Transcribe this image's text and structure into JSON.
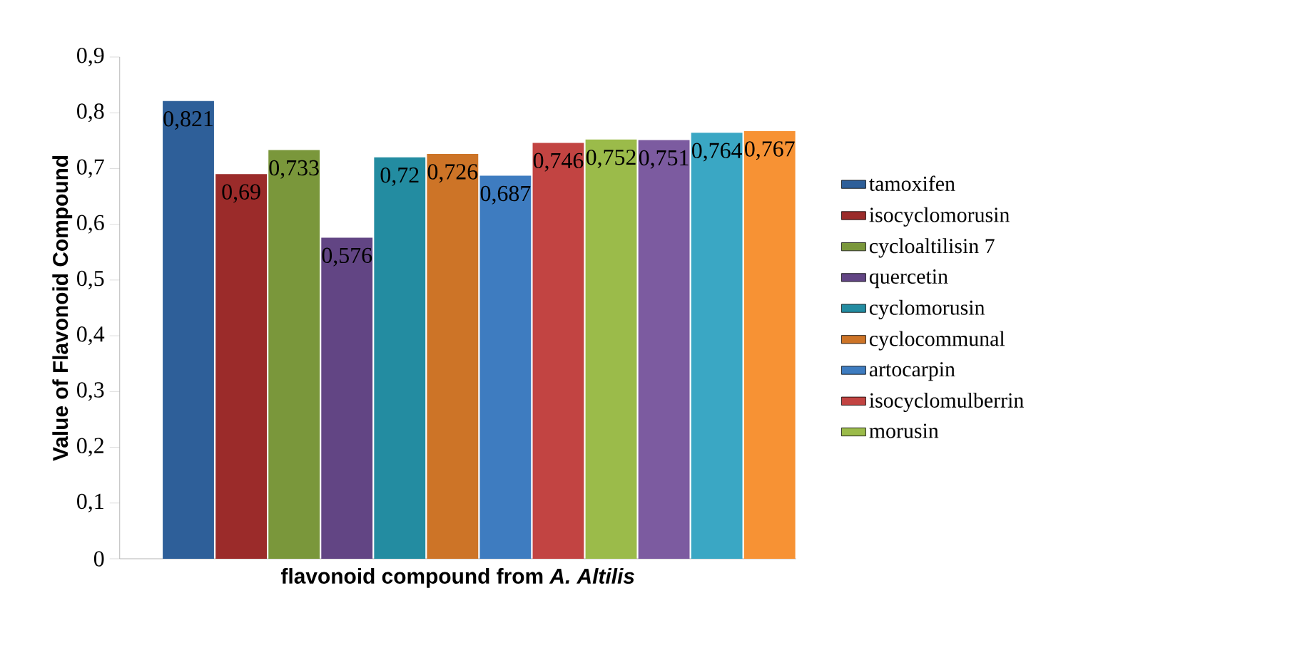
{
  "chart_data": {
    "type": "bar",
    "xlabel": "flavonoid compound from *A. Altilis*",
    "ylabel": "Value of Flavonoid Compound",
    "categories": [
      null
    ],
    "series": [
      {
        "name": "tamoxifen",
        "color": "#2e5f99",
        "values": [
          0.821
        ],
        "value_labels": [
          "0,821"
        ]
      },
      {
        "name": "isocyclomorusin",
        "color": "#9b2b2a",
        "values": [
          0.69
        ],
        "value_labels": [
          "0,69"
        ]
      },
      {
        "name": "cycloaltilisin 7",
        "color": "#7a973b",
        "values": [
          0.733
        ],
        "value_labels": [
          "0,733"
        ]
      },
      {
        "name": "quercetin",
        "color": "#624584",
        "values": [
          0.576
        ],
        "value_labels": [
          "0,576"
        ]
      },
      {
        "name": "cyclomorusin",
        "color": "#238ca1",
        "values": [
          0.72
        ],
        "value_labels": [
          "0,72"
        ]
      },
      {
        "name": "cyclocommunal",
        "color": "#cd7427",
        "values": [
          0.726
        ],
        "value_labels": [
          "0,726"
        ]
      },
      {
        "name": "artocarpin",
        "color": "#3e7cc0",
        "values": [
          0.687
        ],
        "value_labels": [
          "0,687"
        ]
      },
      {
        "name": "isocyclomulberrin",
        "color": "#c24442",
        "values": [
          0.746
        ],
        "value_labels": [
          "0,746"
        ]
      },
      {
        "name": "morusin",
        "color": "#9bbb4a",
        "values": [
          0.752
        ],
        "value_labels": [
          "0,752"
        ]
      },
      {
        "color": "#7c5ba0",
        "values": [
          0.751
        ],
        "value_labels": [
          "0,751"
        ]
      },
      {
        "color": "#3aa7c4",
        "values": [
          0.764
        ],
        "value_labels": [
          "0,764"
        ]
      },
      {
        "color": "#f79234",
        "values": [
          0.767
        ],
        "value_labels": [
          "0,767"
        ]
      }
    ],
    "ylim": [
      0,
      0.9
    ],
    "yticks": [
      {
        "value": 0,
        "label": "0"
      },
      {
        "value": 0.1,
        "label": "0,1"
      },
      {
        "value": 0.2,
        "label": "0,2"
      },
      {
        "value": 0.3,
        "label": "0,3"
      },
      {
        "value": 0.4,
        "label": "0,4"
      },
      {
        "value": 0.5,
        "label": "0,5"
      },
      {
        "value": 0.6,
        "label": "0,6"
      },
      {
        "value": 0.7,
        "label": "0,7"
      },
      {
        "value": 0.8,
        "label": "0,8"
      },
      {
        "value": 0.9,
        "label": "0,9"
      }
    ],
    "legend": "right"
  }
}
